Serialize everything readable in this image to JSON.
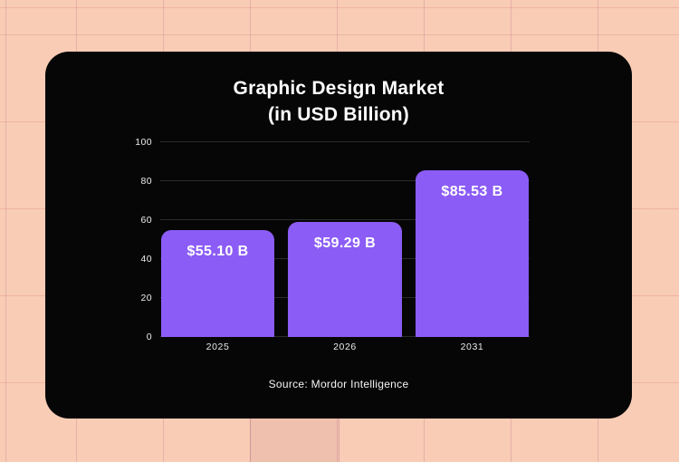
{
  "theme": {
    "page_background": "#f8ccb5",
    "card_background": "#060606",
    "bar_color": "#8b5cf6",
    "grid_line_color": "#2b2b2b",
    "axis_text_color": "#ececec",
    "text_color": "#ffffff"
  },
  "chart_data": {
    "type": "bar",
    "title": "Graphic Design Market",
    "subtitle": "(in USD Billion)",
    "categories": [
      "2025",
      "2026",
      "2031"
    ],
    "values": [
      55.1,
      59.29,
      85.53
    ],
    "value_labels": [
      "$55.10 B",
      "$59.29 B",
      "$85.53 B"
    ],
    "y_ticks": [
      0,
      20,
      40,
      60,
      80,
      100
    ],
    "ylim": [
      0,
      100
    ],
    "xlabel": "",
    "ylabel": "",
    "grid": true,
    "legend": false,
    "bar_color": "#8b5cf6",
    "source": "Source: Mordor Intelligence"
  }
}
